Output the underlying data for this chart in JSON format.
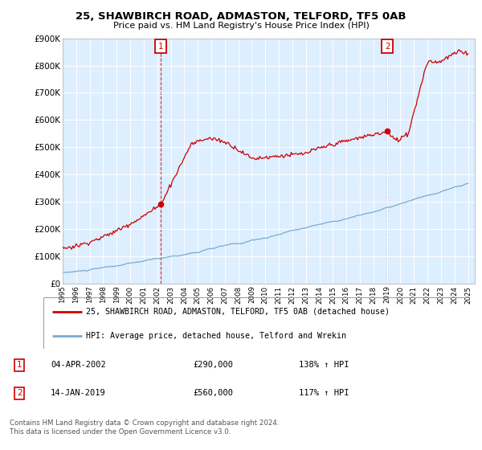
{
  "title": "25, SHAWBIRCH ROAD, ADMASTON, TELFORD, TF5 0AB",
  "subtitle": "Price paid vs. HM Land Registry's House Price Index (HPI)",
  "ylabel_ticks": [
    "£0",
    "£100K",
    "£200K",
    "£300K",
    "£400K",
    "£500K",
    "£600K",
    "£700K",
    "£800K",
    "£900K"
  ],
  "ylim": [
    0,
    900000
  ],
  "xlim_start": 1995.0,
  "xlim_end": 2025.5,
  "hpi_color": "#7aaad0",
  "price_color": "#cc0000",
  "marker1_x": 2002.25,
  "marker1_y": 290000,
  "marker1_label": "1",
  "marker2_x": 2019.04,
  "marker2_y": 560000,
  "marker2_label": "2",
  "legend_line1": "25, SHAWBIRCH ROAD, ADMASTON, TELFORD, TF5 0AB (detached house)",
  "legend_line2": "HPI: Average price, detached house, Telford and Wrekin",
  "table_row1": [
    "1",
    "04-APR-2002",
    "£290,000",
    "138% ↑ HPI"
  ],
  "table_row2": [
    "2",
    "14-JAN-2019",
    "£560,000",
    "117% ↑ HPI"
  ],
  "footer": "Contains HM Land Registry data © Crown copyright and database right 2024.\nThis data is licensed under the Open Government Licence v3.0.",
  "plot_bg_color": "#ddeeff",
  "fig_bg_color": "#ffffff",
  "grid_color": "#ffffff",
  "hpi_seed": 10,
  "price_seed": 7
}
